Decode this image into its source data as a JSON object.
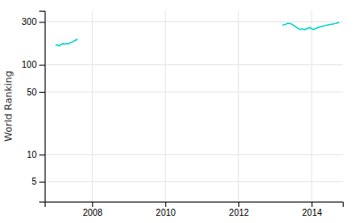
{
  "chart_data": {
    "type": "line",
    "ylabel": "World Ranking",
    "log": "y",
    "grid": true,
    "xlim": [
      2006.7,
      2014.85
    ],
    "ylim": [
      3,
      400
    ],
    "xticks": [
      2008,
      2010,
      2012,
      2014
    ],
    "yticks": [
      5,
      10,
      50,
      100,
      300
    ],
    "series": [
      {
        "color": "#00d4cc",
        "x": [
          2007.0,
          2007.05,
          2007.1,
          2007.15,
          2007.2,
          2007.25,
          2007.3,
          2007.35,
          2007.4,
          2007.45,
          2007.5,
          2007.55,
          2007.6
        ],
        "values": [
          165,
          167,
          163,
          168,
          172,
          170,
          173,
          171,
          176,
          179,
          183,
          188,
          193
        ]
      },
      {
        "color": "#00d4cc",
        "x": [
          2013.2,
          2013.25,
          2013.3,
          2013.35,
          2013.4,
          2013.45,
          2013.5,
          2013.55,
          2013.6,
          2013.65,
          2013.7,
          2013.75,
          2013.8,
          2013.85,
          2013.9,
          2013.95,
          2014.0,
          2014.05,
          2014.1,
          2014.15,
          2014.2,
          2014.25,
          2014.3,
          2014.35,
          2014.4,
          2014.45,
          2014.5,
          2014.55,
          2014.6,
          2014.65,
          2014.7,
          2014.75
        ],
        "values": [
          275,
          280,
          283,
          290,
          288,
          285,
          275,
          268,
          258,
          252,
          248,
          252,
          245,
          250,
          255,
          260,
          252,
          248,
          252,
          258,
          262,
          266,
          270,
          272,
          275,
          278,
          280,
          283,
          285,
          288,
          292,
          296
        ]
      }
    ]
  }
}
